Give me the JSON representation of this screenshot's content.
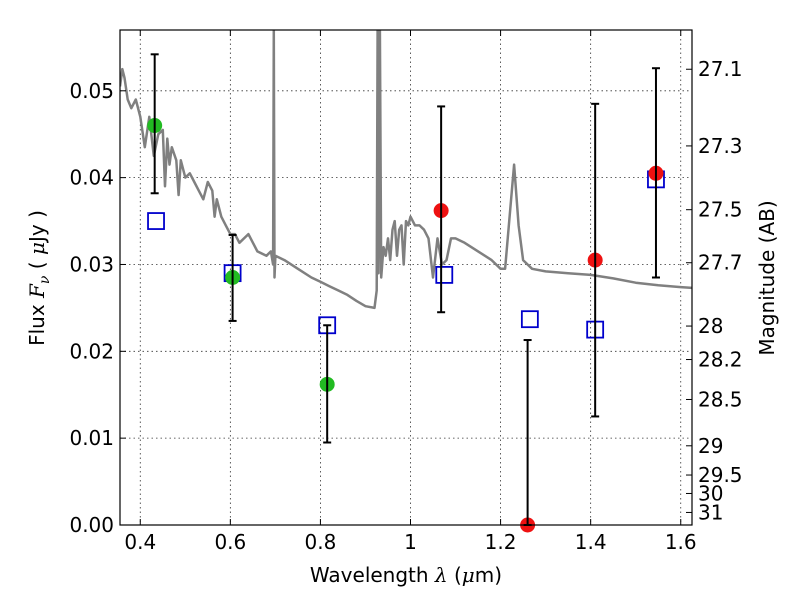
{
  "chart_data": {
    "type": "scatter",
    "xlabel": "Wavelength  λ (μm)",
    "xlabel_parts": {
      "prefix": "Wavelength  ",
      "symbol": "λ",
      "unit_open": " (",
      "unit_mu": "μ",
      "unit_rest": "m)"
    },
    "ylabel": "Flux  Fν  ( μJy )",
    "ylabel_parts": {
      "prefix": "Flux  ",
      "symbol": "F",
      "subscript": "ν",
      "unit_open": "  ( ",
      "unit_mu": "μ",
      "unit_rest": "Jy )"
    },
    "y2label": "Magnitude (AB)",
    "xlim": [
      0.355,
      1.625
    ],
    "ylim": [
      0.0,
      0.057
    ],
    "grid": true,
    "x_ticks": [
      0.4,
      0.6,
      0.8,
      1.0,
      1.2,
      1.4,
      1.6
    ],
    "x_tick_labels": [
      "0.4",
      "0.6",
      "0.8",
      "1",
      "1.2",
      "1.4",
      "1.6"
    ],
    "y_ticks": [
      0.0,
      0.01,
      0.02,
      0.03,
      0.04,
      0.05
    ],
    "y_tick_labels": [
      "0.00",
      "0.01",
      "0.02",
      "0.03",
      "0.04",
      "0.05"
    ],
    "mag_ticks": [
      {
        "mag": 27.1,
        "label": "27.1"
      },
      {
        "mag": 27.3,
        "label": "27.3"
      },
      {
        "mag": 27.5,
        "label": "27.5"
      },
      {
        "mag": 27.7,
        "label": "27.7"
      },
      {
        "mag": 28.0,
        "label": "28"
      },
      {
        "mag": 28.2,
        "label": "28.2"
      },
      {
        "mag": 28.5,
        "label": "28.5"
      },
      {
        "mag": 29.0,
        "label": "29"
      },
      {
        "mag": 29.5,
        "label": "29.5"
      },
      {
        "mag": 30.0,
        "label": "30"
      },
      {
        "mag": 31.0,
        "label": "31"
      }
    ],
    "colors": {
      "spectrum": "#808080",
      "green_points": "#22bb22",
      "red_points": "#ee1111",
      "model_boxes": "#0000cc",
      "error_bars": "#000000"
    },
    "series": [
      {
        "name": "Spectrum",
        "kind": "line",
        "x": [
          0.355,
          0.36,
          0.365,
          0.372,
          0.38,
          0.39,
          0.4,
          0.41,
          0.42,
          0.43,
          0.44,
          0.45,
          0.455,
          0.46,
          0.465,
          0.47,
          0.48,
          0.485,
          0.49,
          0.5,
          0.51,
          0.52,
          0.53,
          0.54,
          0.55,
          0.56,
          0.565,
          0.57,
          0.58,
          0.59,
          0.6,
          0.61,
          0.62,
          0.64,
          0.66,
          0.68,
          0.69,
          0.695,
          0.6965,
          0.698,
          0.7,
          0.72,
          0.75,
          0.78,
          0.8,
          0.82,
          0.84,
          0.86,
          0.88,
          0.9,
          0.92,
          0.925,
          0.927,
          0.929,
          0.932,
          0.935,
          0.94,
          0.945,
          0.95,
          0.955,
          0.96,
          0.965,
          0.97,
          0.975,
          0.98,
          0.985,
          0.99,
          0.995,
          1.0,
          1.01,
          1.02,
          1.03,
          1.04,
          1.05,
          1.06,
          1.07,
          1.08,
          1.09,
          1.1,
          1.12,
          1.15,
          1.18,
          1.2,
          1.21,
          1.22,
          1.23,
          1.24,
          1.25,
          1.26,
          1.27,
          1.3,
          1.35,
          1.4,
          1.45,
          1.5,
          1.55,
          1.6,
          1.625
        ],
        "y": [
          0.0505,
          0.0525,
          0.0515,
          0.049,
          0.048,
          0.049,
          0.047,
          0.0435,
          0.047,
          0.0425,
          0.045,
          0.0455,
          0.039,
          0.0445,
          0.0415,
          0.0435,
          0.042,
          0.038,
          0.042,
          0.04,
          0.0405,
          0.0395,
          0.0385,
          0.0375,
          0.0395,
          0.0385,
          0.0355,
          0.0375,
          0.0355,
          0.0345,
          0.0335,
          0.0335,
          0.0325,
          0.0335,
          0.0315,
          0.031,
          0.0315,
          0.03,
          0.057,
          0.0285,
          0.031,
          0.0305,
          0.0295,
          0.0285,
          0.028,
          0.0275,
          0.027,
          0.0265,
          0.0258,
          0.0252,
          0.025,
          0.027,
          0.057,
          0.029,
          0.057,
          0.0285,
          0.032,
          0.031,
          0.033,
          0.0305,
          0.034,
          0.035,
          0.031,
          0.034,
          0.0345,
          0.03,
          0.035,
          0.0345,
          0.0355,
          0.0345,
          0.0345,
          0.034,
          0.033,
          0.0285,
          0.033,
          0.03,
          0.0305,
          0.033,
          0.033,
          0.0325,
          0.0315,
          0.0305,
          0.0295,
          0.0295,
          0.0355,
          0.0415,
          0.0345,
          0.0305,
          0.03,
          0.0295,
          0.0292,
          0.029,
          0.0288,
          0.0284,
          0.0279,
          0.0276,
          0.0274,
          0.0273
        ]
      },
      {
        "name": "Model photometry",
        "kind": "open-square",
        "x": [
          0.435,
          0.605,
          0.815,
          1.075,
          1.265,
          1.41,
          1.545
        ],
        "y": [
          0.035,
          0.029,
          0.023,
          0.0288,
          0.0237,
          0.0225,
          0.0398
        ]
      },
      {
        "name": "Detections (green)",
        "kind": "filled-circle",
        "x": [
          0.432,
          0.605,
          0.815
        ],
        "y": [
          0.046,
          0.0285,
          0.0162
        ]
      },
      {
        "name": "Detections (red)",
        "kind": "filled-circle",
        "x": [
          1.068,
          1.26,
          1.41,
          1.545
        ],
        "y": [
          0.0362,
          0.0,
          0.0305,
          0.0405
        ]
      },
      {
        "name": "Error bars",
        "kind": "errorbar",
        "x": [
          0.432,
          0.605,
          0.815,
          1.068,
          1.26,
          1.41,
          1.545
        ],
        "low": [
          0.0382,
          0.0235,
          0.0095,
          0.0245,
          0.0,
          0.0125,
          0.0285
        ],
        "high": [
          0.0542,
          0.0334,
          0.023,
          0.0482,
          0.0213,
          0.0485,
          0.0526
        ]
      }
    ]
  }
}
